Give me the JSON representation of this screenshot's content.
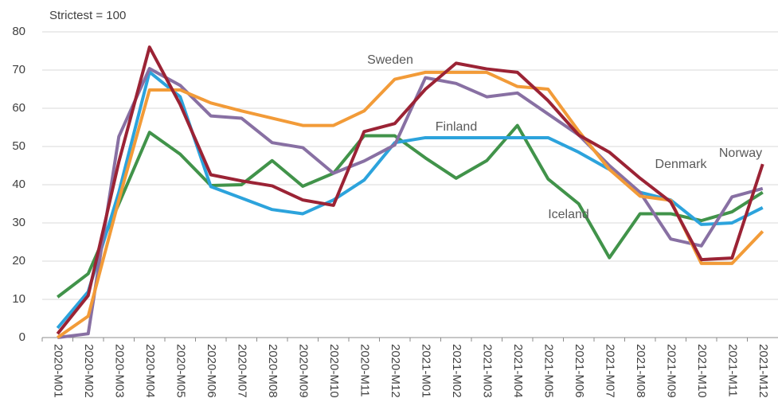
{
  "chart_data": {
    "type": "line",
    "subtitle": "Strictest = 100",
    "categories": [
      "2020-M01",
      "2020-M02",
      "2020-M03",
      "2020-M04",
      "2020-M05",
      "2020-M06",
      "2020-M07",
      "2020-M08",
      "2020-M09",
      "2020-M10",
      "2020-M11",
      "2020-M12",
      "2021-M01",
      "2021-M02",
      "2021-M03",
      "2021-M04",
      "2021-M05",
      "2021-M06",
      "2021-M07",
      "2021-M08",
      "2021-M09",
      "2021-M10",
      "2021-M11",
      "2021-M12"
    ],
    "series": [
      {
        "name": "Iceland",
        "color": "#41934a",
        "values": [
          10.6,
          16.7,
          35,
          53.7,
          48,
          39.8,
          40,
          46.3,
          39.6,
          43,
          52.8,
          52.8,
          47,
          41.7,
          46.3,
          55.5,
          41.5,
          35,
          20.9,
          32.4,
          32.4,
          30.6,
          32.9,
          38
        ]
      },
      {
        "name": "Finland",
        "color": "#2ca3dc",
        "values": [
          2.5,
          12,
          38,
          69.5,
          63,
          39.5,
          36.5,
          33.5,
          32.4,
          36,
          41.2,
          51,
          52.3,
          52.3,
          52.3,
          52.3,
          52.3,
          48.5,
          44,
          38,
          36,
          29.6,
          30,
          34
        ]
      },
      {
        "name": "Denmark",
        "color": "#8870a3",
        "values": [
          0,
          1,
          52.6,
          70.4,
          66,
          58,
          57.4,
          51,
          49.7,
          43,
          46.2,
          50.4,
          68,
          66.5,
          63,
          64,
          58.5,
          53,
          45,
          38,
          25.8,
          24,
          36.8,
          39
        ]
      },
      {
        "name": "Sweden",
        "color": "#f29b38",
        "values": [
          0,
          5.6,
          36,
          64.8,
          64.8,
          61.4,
          59.3,
          57.4,
          55.5,
          55.5,
          59.3,
          67.6,
          69.4,
          69.4,
          69.4,
          65.7,
          65,
          54,
          44,
          37,
          35.9,
          19.4,
          19.4,
          27.8
        ]
      },
      {
        "name": "Norway",
        "color": "#9b2335",
        "values": [
          1,
          11,
          46,
          76,
          61,
          42.6,
          41,
          39.7,
          36,
          34.6,
          53.9,
          56,
          65,
          71.8,
          70.3,
          69.4,
          62,
          53,
          48.5,
          41.7,
          35.5,
          20.4,
          20.8,
          45.4
        ]
      }
    ],
    "ylim": [
      0,
      80
    ],
    "yticks": [
      0,
      10,
      20,
      30,
      40,
      50,
      60,
      70,
      80
    ],
    "grid": true
  }
}
